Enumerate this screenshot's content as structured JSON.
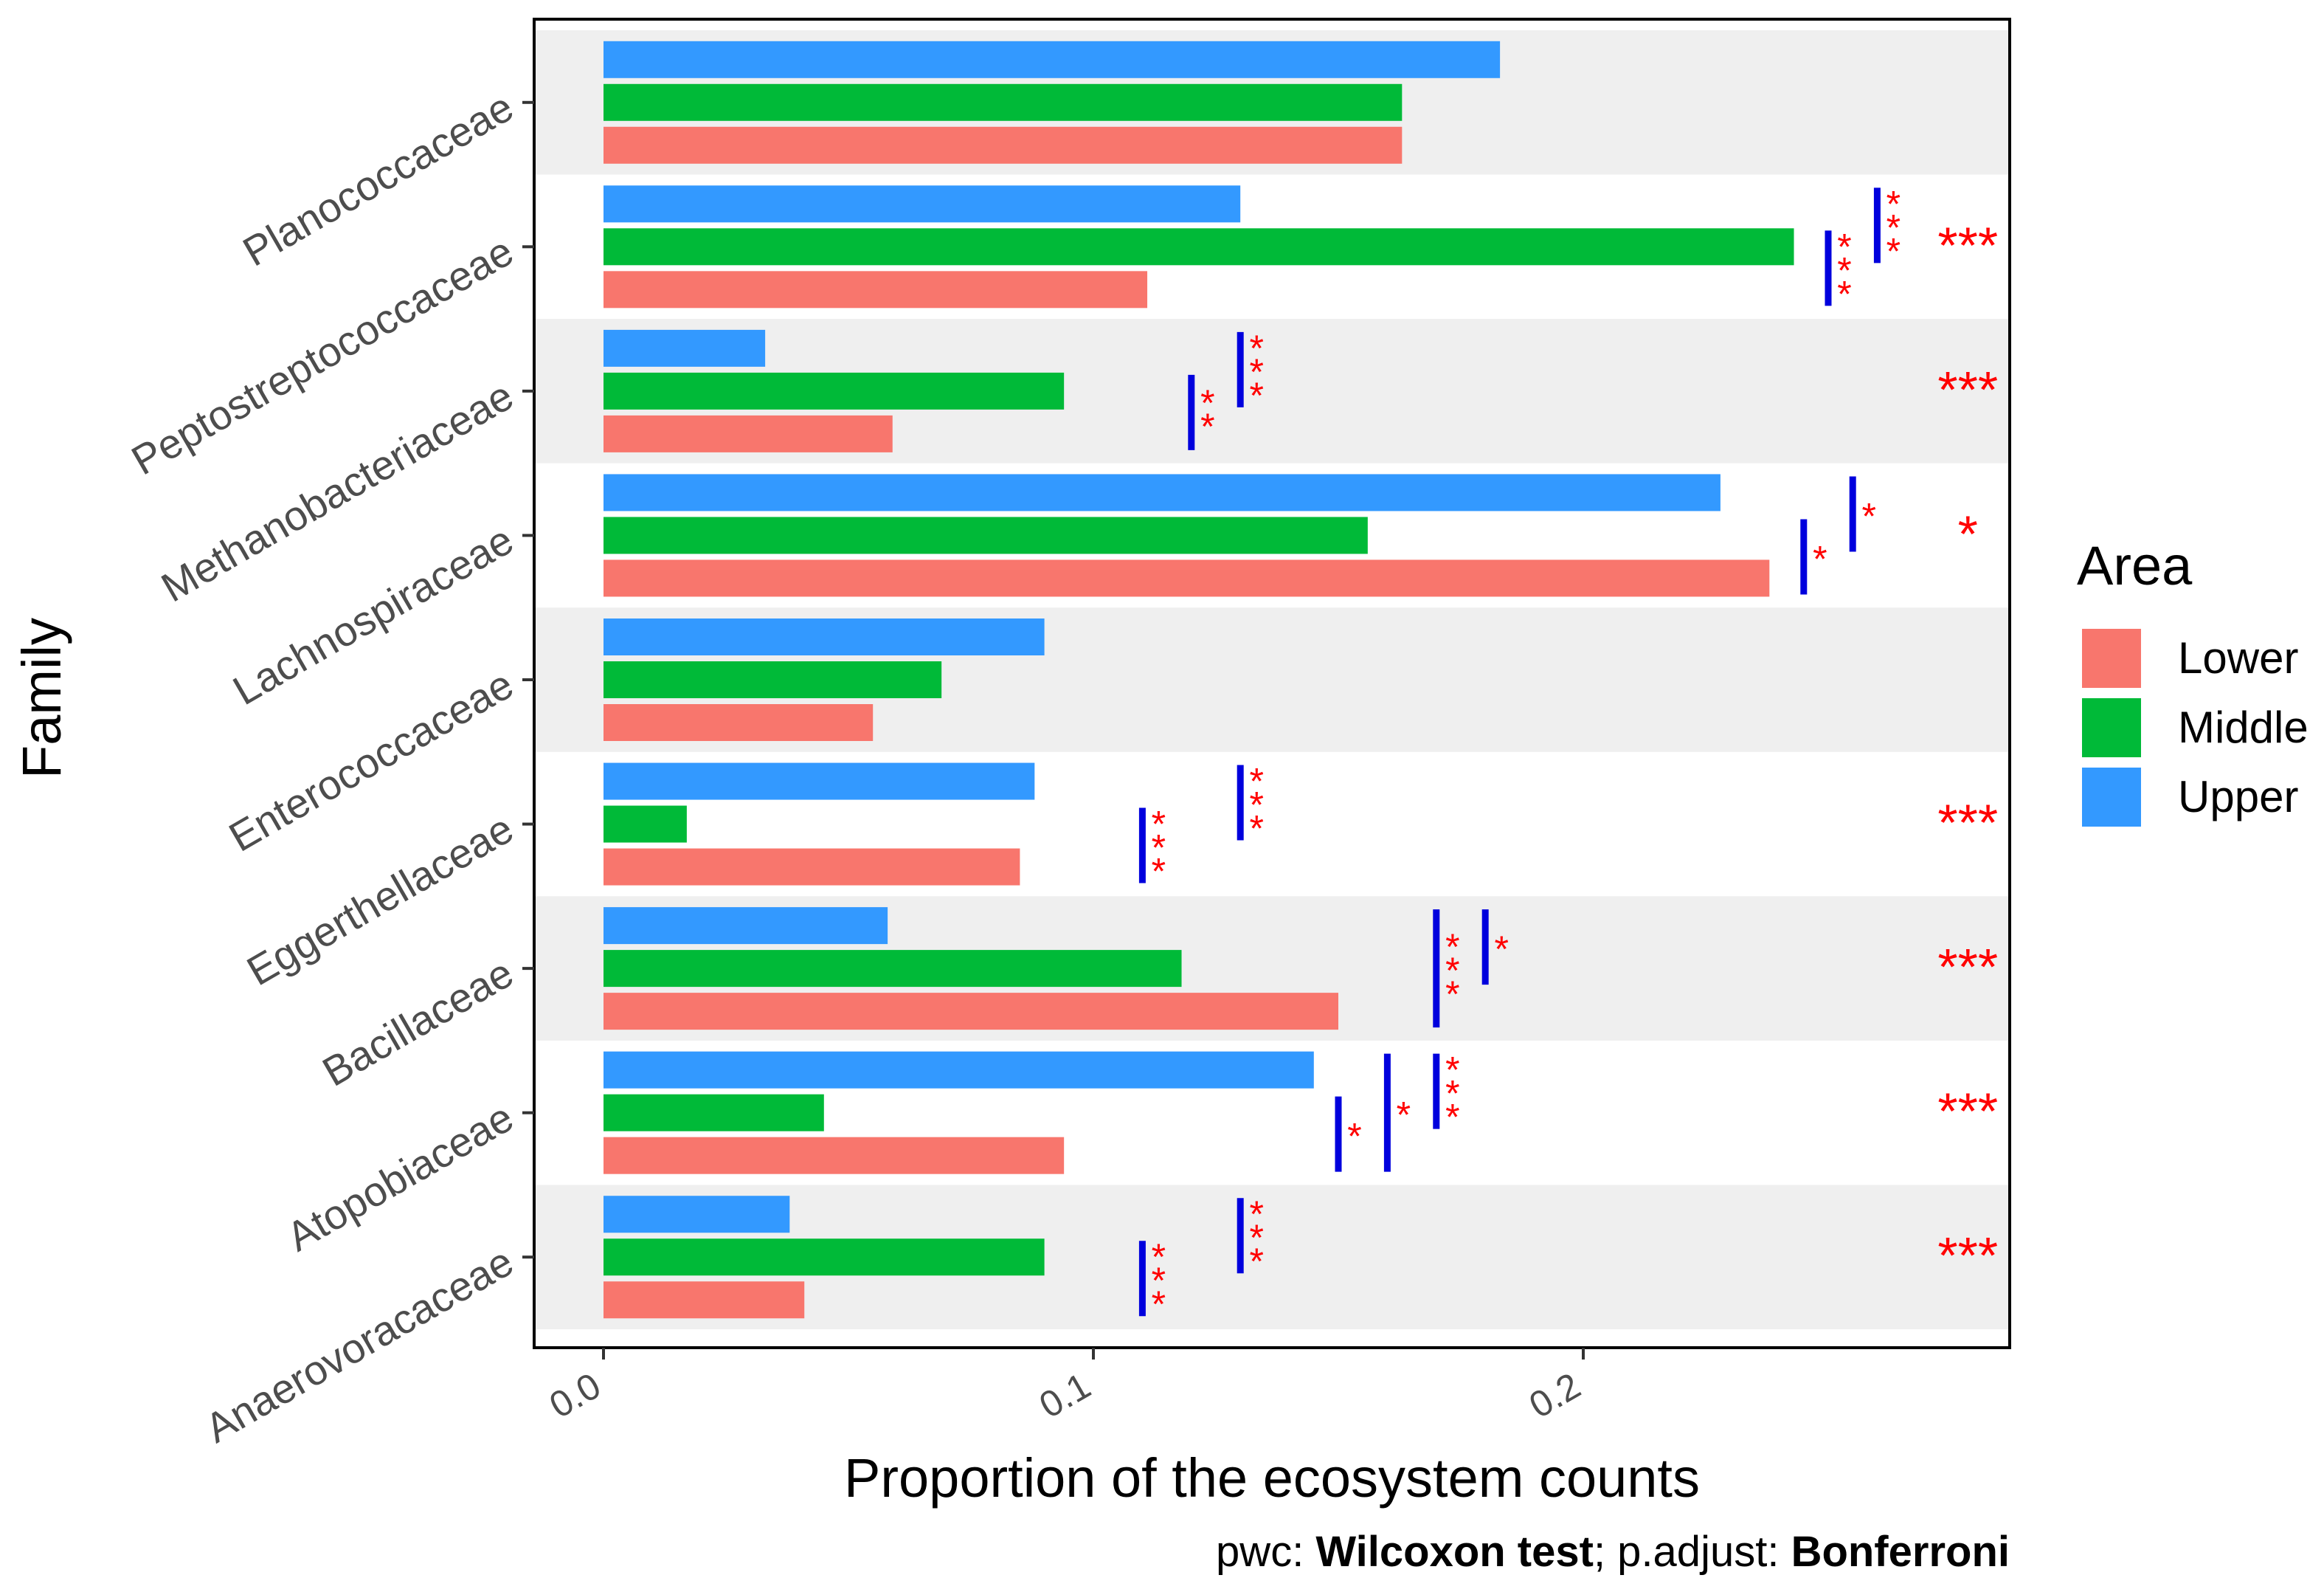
{
  "chart_data": {
    "type": "bar",
    "orientation": "horizontal",
    "title": "",
    "xlabel": "Proportion of the ecosystem counts",
    "ylabel": "Family",
    "xlim": [
      -0.0145,
      0.288
    ],
    "xticks": [
      0.0,
      0.1,
      0.2
    ],
    "xtick_labels": [
      "0.0",
      "0.1",
      "0.2"
    ],
    "categories": [
      "Planococcaceae",
      "Peptostreptococcaceae",
      "Methanobacteriaceae",
      "Lachnospiraceae",
      "Enterococcaceae",
      "Eggerthellaceae",
      "Bacillaceae",
      "Atopobiaceae",
      "Anaerovoracaceae"
    ],
    "series": [
      {
        "name": "Upper",
        "color": "#3399ff",
        "values": [
          0.183,
          0.13,
          0.033,
          0.228,
          0.09,
          0.088,
          0.058,
          0.145,
          0.038
        ]
      },
      {
        "name": "Middle",
        "color": "#00ba38",
        "values": [
          0.163,
          0.243,
          0.094,
          0.156,
          0.069,
          0.017,
          0.118,
          0.045,
          0.09
        ]
      },
      {
        "name": "Lower",
        "color": "#f8766d",
        "values": [
          0.163,
          0.111,
          0.059,
          0.238,
          0.055,
          0.085,
          0.15,
          0.094,
          0.041
        ]
      }
    ],
    "legend": {
      "title": "Area",
      "entries": [
        "Lower",
        "Middle",
        "Upper"
      ],
      "position": "right"
    },
    "significance": {
      "overall": [
        {
          "category": "Peptostreptococcaceae",
          "label": "***"
        },
        {
          "category": "Methanobacteriaceae",
          "label": "***"
        },
        {
          "category": "Lachnospiraceae",
          "label": "*"
        },
        {
          "category": "Eggerthellaceae",
          "label": "***"
        },
        {
          "category": "Bacillaceae",
          "label": "***"
        },
        {
          "category": "Atopobiaceae",
          "label": "***"
        },
        {
          "category": "Anaerovoracaceae",
          "label": "***"
        }
      ],
      "pairwise": [
        {
          "category": "Peptostreptococcaceae",
          "x": 0.26,
          "from": "Upper",
          "to": "Middle",
          "label": "***"
        },
        {
          "category": "Peptostreptococcaceae",
          "x": 0.25,
          "from": "Middle",
          "to": "Lower",
          "label": "***"
        },
        {
          "category": "Methanobacteriaceae",
          "x": 0.13,
          "from": "Upper",
          "to": "Middle",
          "label": "***"
        },
        {
          "category": "Methanobacteriaceae",
          "x": 0.12,
          "from": "Middle",
          "to": "Lower",
          "label": "**"
        },
        {
          "category": "Lachnospiraceae",
          "x": 0.255,
          "from": "Upper",
          "to": "Middle",
          "label": "*"
        },
        {
          "category": "Lachnospiraceae",
          "x": 0.245,
          "from": "Middle",
          "to": "Lower",
          "label": "*"
        },
        {
          "category": "Eggerthellaceae",
          "x": 0.13,
          "from": "Upper",
          "to": "Middle",
          "label": "***"
        },
        {
          "category": "Eggerthellaceae",
          "x": 0.11,
          "from": "Middle",
          "to": "Lower",
          "label": "***"
        },
        {
          "category": "Bacillaceae",
          "x": 0.18,
          "from": "Upper",
          "to": "Middle",
          "label": "*"
        },
        {
          "category": "Bacillaceae",
          "x": 0.17,
          "from": "Upper",
          "to": "Lower",
          "label": "***"
        },
        {
          "category": "Atopobiaceae",
          "x": 0.17,
          "from": "Upper",
          "to": "Middle",
          "label": "***"
        },
        {
          "category": "Atopobiaceae",
          "x": 0.16,
          "from": "Upper",
          "to": "Lower",
          "label": "*"
        },
        {
          "category": "Atopobiaceae",
          "x": 0.15,
          "from": "Middle",
          "to": "Lower",
          "label": "*"
        },
        {
          "category": "Anaerovoracaceae",
          "x": 0.13,
          "from": "Upper",
          "to": "Middle",
          "label": "***"
        },
        {
          "category": "Anaerovoracaceae",
          "x": 0.11,
          "from": "Middle",
          "to": "Lower",
          "label": "***"
        }
      ]
    },
    "caption": {
      "prefix": "pwc: ",
      "test": "Wilcoxon test",
      "mid": "; p.adjust: ",
      "method": "Bonferroni"
    }
  }
}
